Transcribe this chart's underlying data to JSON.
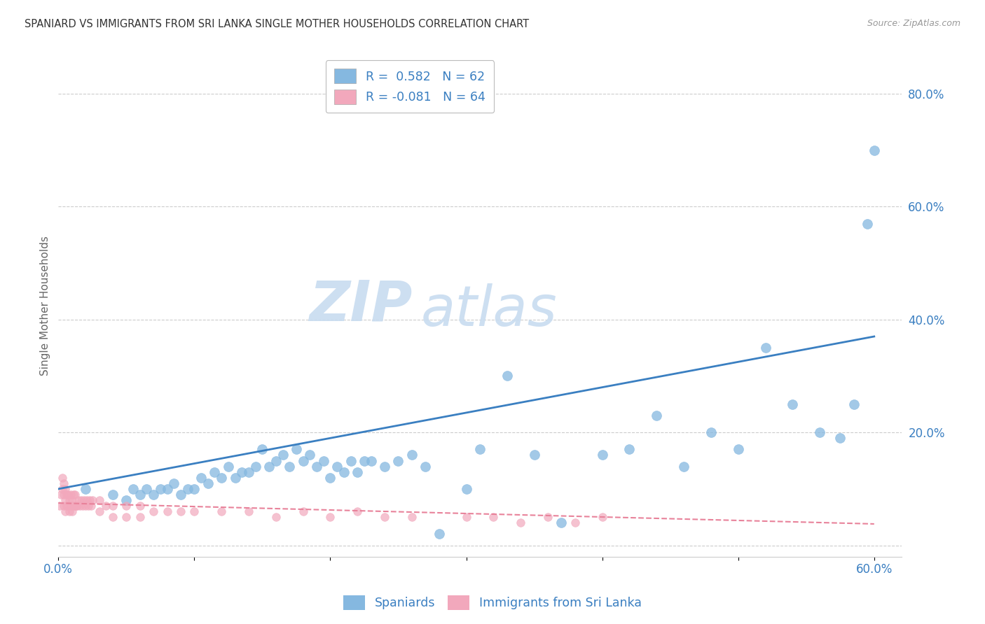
{
  "title": "SPANIARD VS IMMIGRANTS FROM SRI LANKA SINGLE MOTHER HOUSEHOLDS CORRELATION CHART",
  "source": "Source: ZipAtlas.com",
  "ylabel_label": "Single Mother Households",
  "xlim": [
    0.0,
    0.62
  ],
  "ylim": [
    -0.02,
    0.87
  ],
  "xticks": [
    0.0,
    0.1,
    0.2,
    0.3,
    0.4,
    0.5,
    0.6
  ],
  "yticks": [
    0.0,
    0.2,
    0.4,
    0.6,
    0.8
  ],
  "xtick_labels": [
    "0.0%",
    "",
    "",
    "",
    "",
    "",
    "60.0%"
  ],
  "ytick_labels_right": [
    "",
    "20.0%",
    "40.0%",
    "60.0%",
    "80.0%"
  ],
  "blue_color": "#85B8E0",
  "pink_color": "#F2A8BC",
  "blue_line_color": "#3A7FC1",
  "pink_line_color": "#E8829A",
  "legend_blue_label": "Spaniards",
  "legend_pink_label": "Immigrants from Sri Lanka",
  "R_blue": 0.582,
  "N_blue": 62,
  "R_pink": -0.081,
  "N_pink": 64,
  "blue_x": [
    0.02,
    0.04,
    0.05,
    0.055,
    0.06,
    0.065,
    0.07,
    0.075,
    0.08,
    0.085,
    0.09,
    0.095,
    0.1,
    0.105,
    0.11,
    0.115,
    0.12,
    0.125,
    0.13,
    0.135,
    0.14,
    0.145,
    0.15,
    0.155,
    0.16,
    0.165,
    0.17,
    0.175,
    0.18,
    0.185,
    0.19,
    0.195,
    0.2,
    0.205,
    0.21,
    0.215,
    0.22,
    0.225,
    0.23,
    0.24,
    0.25,
    0.26,
    0.27,
    0.28,
    0.3,
    0.31,
    0.33,
    0.35,
    0.37,
    0.4,
    0.42,
    0.44,
    0.46,
    0.48,
    0.5,
    0.52,
    0.54,
    0.56,
    0.575,
    0.585,
    0.595,
    0.6
  ],
  "blue_y": [
    0.1,
    0.09,
    0.08,
    0.1,
    0.09,
    0.1,
    0.09,
    0.1,
    0.1,
    0.11,
    0.09,
    0.1,
    0.1,
    0.12,
    0.11,
    0.13,
    0.12,
    0.14,
    0.12,
    0.13,
    0.13,
    0.14,
    0.17,
    0.14,
    0.15,
    0.16,
    0.14,
    0.17,
    0.15,
    0.16,
    0.14,
    0.15,
    0.12,
    0.14,
    0.13,
    0.15,
    0.13,
    0.15,
    0.15,
    0.14,
    0.15,
    0.16,
    0.14,
    0.02,
    0.1,
    0.17,
    0.3,
    0.16,
    0.04,
    0.16,
    0.17,
    0.23,
    0.14,
    0.2,
    0.17,
    0.35,
    0.25,
    0.2,
    0.19,
    0.25,
    0.57,
    0.7
  ],
  "pink_x": [
    0.001,
    0.002,
    0.003,
    0.003,
    0.004,
    0.004,
    0.004,
    0.005,
    0.005,
    0.005,
    0.006,
    0.006,
    0.007,
    0.007,
    0.008,
    0.008,
    0.009,
    0.009,
    0.01,
    0.01,
    0.011,
    0.011,
    0.012,
    0.012,
    0.013,
    0.014,
    0.015,
    0.016,
    0.017,
    0.018,
    0.019,
    0.02,
    0.021,
    0.022,
    0.023,
    0.024,
    0.025,
    0.03,
    0.03,
    0.035,
    0.04,
    0.04,
    0.05,
    0.05,
    0.06,
    0.06,
    0.07,
    0.08,
    0.09,
    0.1,
    0.12,
    0.14,
    0.16,
    0.18,
    0.2,
    0.22,
    0.24,
    0.26,
    0.3,
    0.32,
    0.34,
    0.36,
    0.38,
    0.4
  ],
  "pink_y": [
    0.07,
    0.09,
    0.1,
    0.12,
    0.07,
    0.09,
    0.11,
    0.06,
    0.08,
    0.1,
    0.07,
    0.09,
    0.07,
    0.09,
    0.06,
    0.08,
    0.07,
    0.09,
    0.06,
    0.08,
    0.07,
    0.09,
    0.07,
    0.09,
    0.07,
    0.07,
    0.08,
    0.07,
    0.08,
    0.07,
    0.08,
    0.07,
    0.08,
    0.07,
    0.08,
    0.07,
    0.08,
    0.06,
    0.08,
    0.07,
    0.05,
    0.07,
    0.05,
    0.07,
    0.05,
    0.07,
    0.06,
    0.06,
    0.06,
    0.06,
    0.06,
    0.06,
    0.05,
    0.06,
    0.05,
    0.06,
    0.05,
    0.05,
    0.05,
    0.05,
    0.04,
    0.05,
    0.04,
    0.05
  ],
  "watermark_zip": "ZIP",
  "watermark_atlas": "atlas",
  "background_color": "#FFFFFF",
  "grid_color": "#CCCCCC",
  "tick_color": "#3A7FC1"
}
